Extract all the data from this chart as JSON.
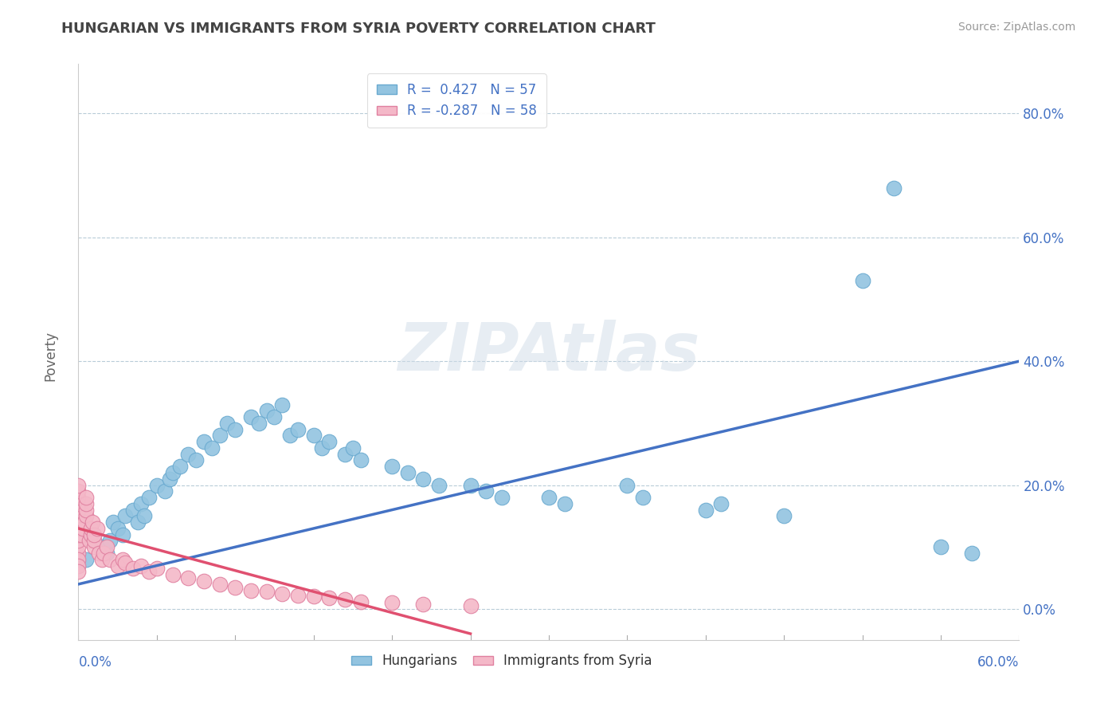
{
  "title": "HUNGARIAN VS IMMIGRANTS FROM SYRIA POVERTY CORRELATION CHART",
  "source": "Source: ZipAtlas.com",
  "ylabel": "Poverty",
  "yticks": [
    0.0,
    0.2,
    0.4,
    0.6,
    0.8
  ],
  "ytick_labels": [
    "0.0%",
    "20.0%",
    "40.0%",
    "60.0%",
    "80.0%"
  ],
  "xmin": 0.0,
  "xmax": 0.6,
  "ymin": -0.05,
  "ymax": 0.88,
  "legend_entry1": "R =  0.427   N = 57",
  "legend_entry2": "R = -0.287   N = 58",
  "hungarian_color": "#93c4e0",
  "hungarian_edge": "#6aaad0",
  "syrian_color": "#f4b8c8",
  "syrian_edge": "#e080a0",
  "trend_hungarian_color": "#4472c4",
  "trend_syrian_color": "#e05070",
  "watermark": "ZIPAtlas",
  "bg_color": "#ffffff",
  "grid_color": "#b8ccd8",
  "title_color": "#444444",
  "tick_label_color": "#4472c4",
  "hungarian_x": [
    0.005,
    0.01,
    0.015,
    0.018,
    0.02,
    0.022,
    0.025,
    0.028,
    0.03,
    0.035,
    0.038,
    0.04,
    0.042,
    0.045,
    0.05,
    0.055,
    0.058,
    0.06,
    0.065,
    0.07,
    0.075,
    0.08,
    0.085,
    0.09,
    0.095,
    0.1,
    0.11,
    0.115,
    0.12,
    0.125,
    0.13,
    0.135,
    0.14,
    0.15,
    0.155,
    0.16,
    0.17,
    0.175,
    0.18,
    0.2,
    0.21,
    0.22,
    0.23,
    0.25,
    0.26,
    0.27,
    0.3,
    0.31,
    0.35,
    0.36,
    0.4,
    0.41,
    0.45,
    0.5,
    0.52,
    0.55,
    0.57
  ],
  "hungarian_y": [
    0.08,
    0.12,
    0.1,
    0.09,
    0.11,
    0.14,
    0.13,
    0.12,
    0.15,
    0.16,
    0.14,
    0.17,
    0.15,
    0.18,
    0.2,
    0.19,
    0.21,
    0.22,
    0.23,
    0.25,
    0.24,
    0.27,
    0.26,
    0.28,
    0.3,
    0.29,
    0.31,
    0.3,
    0.32,
    0.31,
    0.33,
    0.28,
    0.29,
    0.28,
    0.26,
    0.27,
    0.25,
    0.26,
    0.24,
    0.23,
    0.22,
    0.21,
    0.2,
    0.2,
    0.19,
    0.18,
    0.18,
    0.17,
    0.2,
    0.18,
    0.16,
    0.17,
    0.15,
    0.53,
    0.68,
    0.1,
    0.09
  ],
  "syrian_x": [
    0.0,
    0.0,
    0.0,
    0.0,
    0.0,
    0.0,
    0.0,
    0.0,
    0.0,
    0.0,
    0.0,
    0.0,
    0.0,
    0.0,
    0.0,
    0.002,
    0.003,
    0.004,
    0.005,
    0.005,
    0.005,
    0.005,
    0.007,
    0.008,
    0.008,
    0.009,
    0.01,
    0.01,
    0.01,
    0.012,
    0.013,
    0.015,
    0.016,
    0.018,
    0.02,
    0.025,
    0.028,
    0.03,
    0.035,
    0.04,
    0.045,
    0.05,
    0.06,
    0.07,
    0.08,
    0.09,
    0.1,
    0.11,
    0.12,
    0.13,
    0.14,
    0.15,
    0.16,
    0.17,
    0.18,
    0.2,
    0.22,
    0.25
  ],
  "syrian_y": [
    0.09,
    0.1,
    0.11,
    0.12,
    0.13,
    0.14,
    0.15,
    0.16,
    0.17,
    0.18,
    0.19,
    0.2,
    0.08,
    0.07,
    0.06,
    0.12,
    0.13,
    0.14,
    0.15,
    0.16,
    0.17,
    0.18,
    0.11,
    0.12,
    0.13,
    0.14,
    0.1,
    0.11,
    0.12,
    0.13,
    0.09,
    0.08,
    0.09,
    0.1,
    0.08,
    0.07,
    0.08,
    0.075,
    0.065,
    0.07,
    0.06,
    0.065,
    0.055,
    0.05,
    0.045,
    0.04,
    0.035,
    0.03,
    0.028,
    0.025,
    0.022,
    0.02,
    0.018,
    0.015,
    0.012,
    0.01,
    0.008,
    0.005
  ],
  "trend_h_x0": 0.0,
  "trend_h_y0": 0.04,
  "trend_h_x1": 0.6,
  "trend_h_y1": 0.4,
  "trend_s_x0": 0.0,
  "trend_s_y0": 0.13,
  "trend_s_x1": 0.25,
  "trend_s_y1": -0.04
}
